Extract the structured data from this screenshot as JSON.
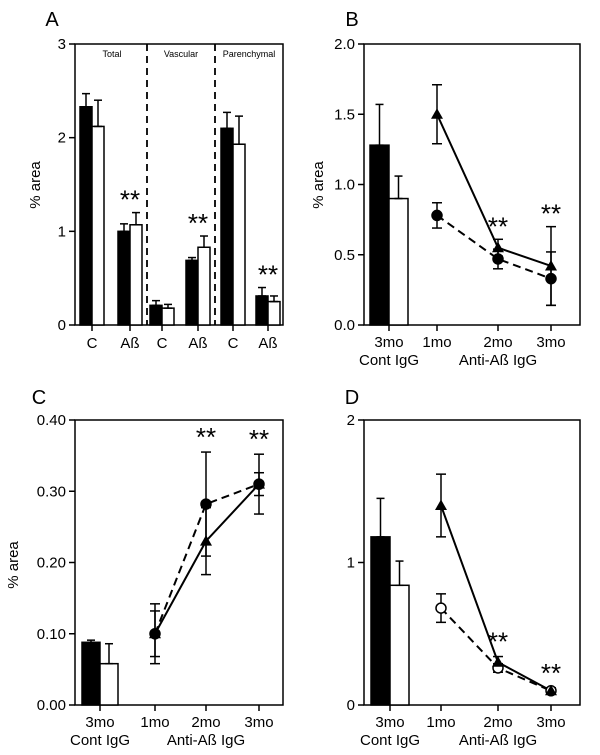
{
  "colors": {
    "ink": "#000000",
    "paper": "#ffffff"
  },
  "figure": {
    "panels": [
      {
        "label": "A",
        "ylabel": "% area",
        "yticks": [
          "0",
          "1",
          "2",
          "3"
        ]
      },
      {
        "label": "B",
        "ylabel": "% area",
        "yticks": [
          "0.0",
          "0.5",
          "1.0",
          "1.5",
          "2.0"
        ]
      },
      {
        "label": "C",
        "ylabel": "% area",
        "yticks": [
          "0.00",
          "0.10",
          "0.20",
          "0.30",
          "0.40"
        ]
      },
      {
        "label": "D",
        "ylabel": "",
        "yticks": [
          "0",
          "1",
          "2"
        ]
      }
    ]
  },
  "chart_data": [
    {
      "panel": "A",
      "type": "bar",
      "ylabel": "% area",
      "ylim": [
        0,
        3
      ],
      "regions": [
        "Total",
        "Vascular",
        "Parenchymal"
      ],
      "categories": [
        "C",
        "Aß",
        "C",
        "Aß",
        "C",
        "Aß"
      ],
      "series": [
        {
          "name": "filled",
          "values": [
            2.33,
            1.0,
            0.21,
            0.69,
            2.1,
            0.31
          ],
          "errors": [
            0.14,
            0.08,
            0.05,
            0.03,
            0.17,
            0.09
          ]
        },
        {
          "name": "open",
          "values": [
            2.12,
            1.07,
            0.18,
            0.83,
            1.93,
            0.25
          ],
          "errors": [
            0.28,
            0.13,
            0.04,
            0.12,
            0.3,
            0.06
          ]
        }
      ],
      "annotations": [
        {
          "text": "**",
          "category_index": 1
        },
        {
          "text": "**",
          "category_index": 3
        },
        {
          "text": "**",
          "category_index": 5
        }
      ]
    },
    {
      "panel": "B",
      "type": "bar+line",
      "ylabel": "% area",
      "ylim": [
        0,
        2
      ],
      "categories": [
        "3mo",
        "1mo",
        "2mo",
        "3mo"
      ],
      "group_labels": [
        "Cont IgG",
        "Anti-Aß IgG"
      ],
      "bars": [
        {
          "name": "filled",
          "value": 1.28,
          "error": 0.29
        },
        {
          "name": "open",
          "value": 0.9,
          "error": 0.16
        }
      ],
      "series": [
        {
          "name": "triangle (solid)",
          "x": [
            "1mo",
            "2mo",
            "3mo"
          ],
          "values": [
            1.5,
            0.55,
            0.42
          ],
          "errors": [
            0.21,
            0.06,
            0.28
          ]
        },
        {
          "name": "circle filled (dashed)",
          "x": [
            "1mo",
            "2mo",
            "3mo"
          ],
          "values": [
            0.78,
            0.47,
            0.33
          ],
          "errors": [
            0.09,
            0.07,
            0.19
          ]
        }
      ],
      "annotations": [
        {
          "text": "**",
          "x": "2mo"
        },
        {
          "text": "**",
          "x": "3mo"
        }
      ]
    },
    {
      "panel": "C",
      "type": "bar+line",
      "ylabel": "% area",
      "ylim": [
        0,
        0.4
      ],
      "categories": [
        "3mo",
        "1mo",
        "2mo",
        "3mo"
      ],
      "group_labels": [
        "Cont IgG",
        "Anti-Aß IgG"
      ],
      "bars": [
        {
          "name": "filled",
          "value": 0.088,
          "error": 0.003
        },
        {
          "name": "open",
          "value": 0.058,
          "error": 0.028
        }
      ],
      "series": [
        {
          "name": "triangle (solid)",
          "x": [
            "1mo",
            "2mo",
            "3mo"
          ],
          "values": [
            0.1,
            0.23,
            0.31
          ],
          "errors": [
            0.032,
            0.047,
            0.016
          ]
        },
        {
          "name": "circle filled (dashed)",
          "x": [
            "1mo",
            "2mo",
            "3mo"
          ],
          "values": [
            0.1,
            0.282,
            0.31
          ],
          "errors": [
            0.042,
            0.073,
            0.042
          ]
        }
      ],
      "annotations": [
        {
          "text": "**",
          "x": "2mo"
        },
        {
          "text": "**",
          "x": "3mo"
        }
      ]
    },
    {
      "panel": "D",
      "type": "bar+line",
      "ylabel": "",
      "ylim": [
        0,
        2
      ],
      "categories": [
        "3mo",
        "1mo",
        "2mo",
        "3mo"
      ],
      "group_labels": [
        "Cont IgG",
        "Anti-Aß IgG"
      ],
      "bars": [
        {
          "name": "filled",
          "value": 1.18,
          "error": 0.27
        },
        {
          "name": "open",
          "value": 0.84,
          "error": 0.17
        }
      ],
      "series": [
        {
          "name": "triangle (solid)",
          "x": [
            "1mo",
            "2mo",
            "3mo"
          ],
          "values": [
            1.4,
            0.3,
            0.1
          ],
          "errors": [
            0.22,
            0.04,
            0.02
          ]
        },
        {
          "name": "circle open (dashed)",
          "x": [
            "1mo",
            "2mo",
            "3mo"
          ],
          "values": [
            0.68,
            0.26,
            0.1
          ],
          "errors": [
            0.1,
            0.03,
            0.02
          ]
        }
      ],
      "annotations": [
        {
          "text": "**",
          "x": "2mo"
        },
        {
          "text": "**",
          "x": "3mo"
        }
      ]
    }
  ]
}
